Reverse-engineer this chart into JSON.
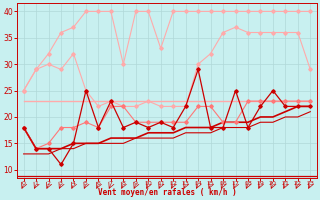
{
  "bg_color": "#c8f0f0",
  "grid_color": "#b0d8d8",
  "xlabel": "Vent moyen/en rafales ( km/h )",
  "xlabel_color": "#cc0000",
  "tick_color": "#cc0000",
  "xlim": [
    -0.5,
    23.5
  ],
  "ylim": [
    8.5,
    41.5
  ],
  "yticks": [
    10,
    15,
    20,
    25,
    30,
    35,
    40
  ],
  "xticks": [
    0,
    1,
    2,
    3,
    4,
    5,
    6,
    7,
    8,
    9,
    10,
    11,
    12,
    13,
    14,
    15,
    16,
    17,
    18,
    19,
    20,
    21,
    22,
    23
  ],
  "series": [
    {
      "x": [
        0,
        1,
        2,
        3,
        4,
        5,
        6,
        7,
        8,
        9,
        10,
        11,
        12,
        13,
        14,
        15,
        16,
        17,
        18,
        19,
        20,
        21,
        22,
        23
      ],
      "y": [
        25,
        29,
        32,
        36,
        37,
        40,
        40,
        40,
        30,
        40,
        40,
        33,
        40,
        40,
        40,
        40,
        40,
        40,
        40,
        40,
        40,
        40,
        40,
        40
      ],
      "color": "#ffaaaa",
      "lw": 0.8,
      "marker": "D",
      "ms": 1.8
    },
    {
      "x": [
        0,
        1,
        2,
        3,
        4,
        5,
        6,
        7,
        8,
        9,
        10,
        11,
        12,
        13,
        14,
        15,
        16,
        17,
        18,
        19,
        20,
        21,
        22,
        23
      ],
      "y": [
        25,
        29,
        30,
        29,
        32,
        25,
        22,
        23,
        22,
        22,
        23,
        22,
        22,
        22,
        30,
        32,
        36,
        37,
        36,
        36,
        36,
        36,
        36,
        29
      ],
      "color": "#ffaaaa",
      "lw": 0.8,
      "marker": "D",
      "ms": 1.8
    },
    {
      "x": [
        0,
        23
      ],
      "y": [
        23,
        23
      ],
      "color": "#ffaaaa",
      "lw": 1.0,
      "marker": null,
      "ms": 0
    },
    {
      "x": [
        0,
        1,
        2,
        3,
        4,
        5,
        6,
        7,
        8,
        9,
        10,
        11,
        12,
        13,
        14,
        15,
        16,
        17,
        18,
        19,
        20,
        21,
        22,
        23
      ],
      "y": [
        18,
        14,
        15,
        18,
        18,
        19,
        18,
        22,
        22,
        19,
        19,
        19,
        19,
        19,
        22,
        22,
        19,
        19,
        23,
        23,
        23,
        23,
        23,
        23
      ],
      "color": "#ff7777",
      "lw": 0.8,
      "marker": "D",
      "ms": 1.8
    },
    {
      "x": [
        0,
        1,
        2,
        3,
        4,
        5,
        6,
        7,
        8,
        9,
        10,
        11,
        12,
        13,
        14,
        15,
        16,
        17,
        18,
        19,
        20,
        21,
        22,
        23
      ],
      "y": [
        18,
        14,
        14,
        11,
        15,
        25,
        18,
        23,
        18,
        19,
        18,
        19,
        18,
        22,
        29,
        18,
        18,
        25,
        18,
        22,
        25,
        22,
        22,
        22
      ],
      "color": "#cc0000",
      "lw": 0.9,
      "marker": "D",
      "ms": 1.8
    },
    {
      "x": [
        0,
        1,
        2,
        3,
        4,
        5,
        6,
        7,
        8,
        9,
        10,
        11,
        12,
        13,
        14,
        15,
        16,
        17,
        18,
        19,
        20,
        21,
        22,
        23
      ],
      "y": [
        18,
        14,
        14,
        14,
        15,
        15,
        15,
        16,
        16,
        16,
        17,
        17,
        17,
        18,
        18,
        18,
        19,
        19,
        19,
        20,
        20,
        21,
        22,
        22
      ],
      "color": "#cc0000",
      "lw": 1.2,
      "marker": null,
      "ms": 0
    },
    {
      "x": [
        0,
        1,
        2,
        3,
        4,
        5,
        6,
        7,
        8,
        9,
        10,
        11,
        12,
        13,
        14,
        15,
        16,
        17,
        18,
        19,
        20,
        21,
        22,
        23
      ],
      "y": [
        13,
        13,
        13,
        14,
        14,
        15,
        15,
        15,
        15,
        16,
        16,
        16,
        16,
        17,
        17,
        17,
        18,
        18,
        18,
        19,
        19,
        20,
        20,
        21
      ],
      "color": "#cc0000",
      "lw": 0.8,
      "marker": null,
      "ms": 0
    }
  ]
}
